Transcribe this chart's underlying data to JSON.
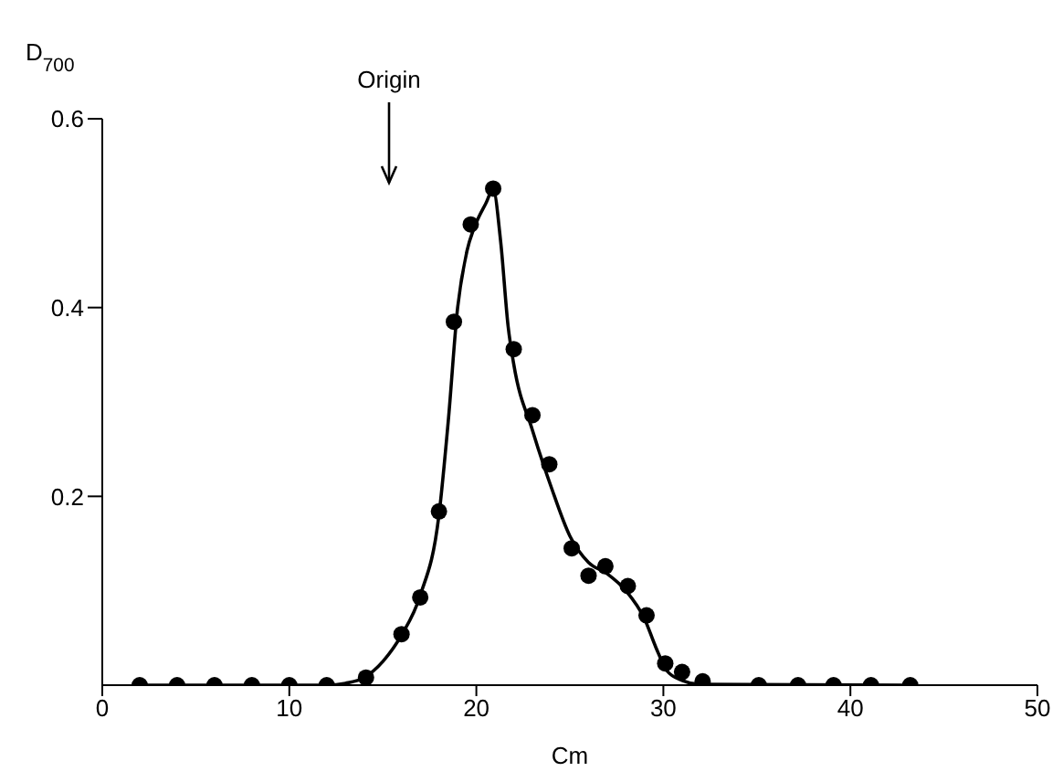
{
  "chart_data": {
    "type": "scatter",
    "xlabel": "Cm",
    "ylabel": "D$_{700}$",
    "xlim": [
      0,
      50
    ],
    "xticks": [
      0,
      10,
      20,
      30,
      40,
      50
    ],
    "ylim": [
      0,
      0.6
    ],
    "yticks": [
      0.2,
      0.4,
      0.6
    ],
    "grid": false,
    "legend": false,
    "annotations": [
      "Origin"
    ],
    "series": [
      {
        "type": "scatter",
        "marker": "circle",
        "color": "#000000",
        "x": [
          2,
          4,
          6,
          8,
          10,
          12,
          14.1,
          16,
          17,
          18,
          18.8,
          19.7,
          20.9,
          22,
          23,
          23.9,
          25.1,
          26,
          26.9,
          28.1,
          29.1,
          30.1,
          31,
          32.1,
          35.1,
          37.2,
          39.1,
          41.1,
          43.2
        ],
        "values": [
          0,
          0,
          0,
          0,
          0,
          0,
          0.008,
          0.054,
          0.093,
          0.184,
          0.385,
          0.488,
          0.526,
          0.356,
          0.286,
          0.234,
          0.145,
          0.116,
          0.126,
          0.105,
          0.074,
          0.023,
          0.014,
          0.004,
          0,
          0,
          0,
          0,
          0
        ]
      },
      {
        "type": "line",
        "marker": "none",
        "color": "#000000",
        "x": [
          2,
          12,
          13,
          14,
          15,
          16,
          17,
          18,
          18.5,
          19,
          19.5,
          20,
          20.5,
          20.9,
          21.3,
          21.7,
          22,
          23,
          24,
          25,
          26,
          27,
          28,
          29,
          29.6,
          30.2,
          31,
          32,
          43.2
        ],
        "values": [
          0,
          0,
          0.002,
          0.008,
          0.025,
          0.053,
          0.095,
          0.18,
          0.28,
          0.4,
          0.46,
          0.49,
          0.51,
          0.525,
          0.47,
          0.38,
          0.34,
          0.27,
          0.21,
          0.158,
          0.13,
          0.118,
          0.1,
          0.07,
          0.04,
          0.015,
          0.005,
          0.001,
          0
        ]
      }
    ]
  }
}
